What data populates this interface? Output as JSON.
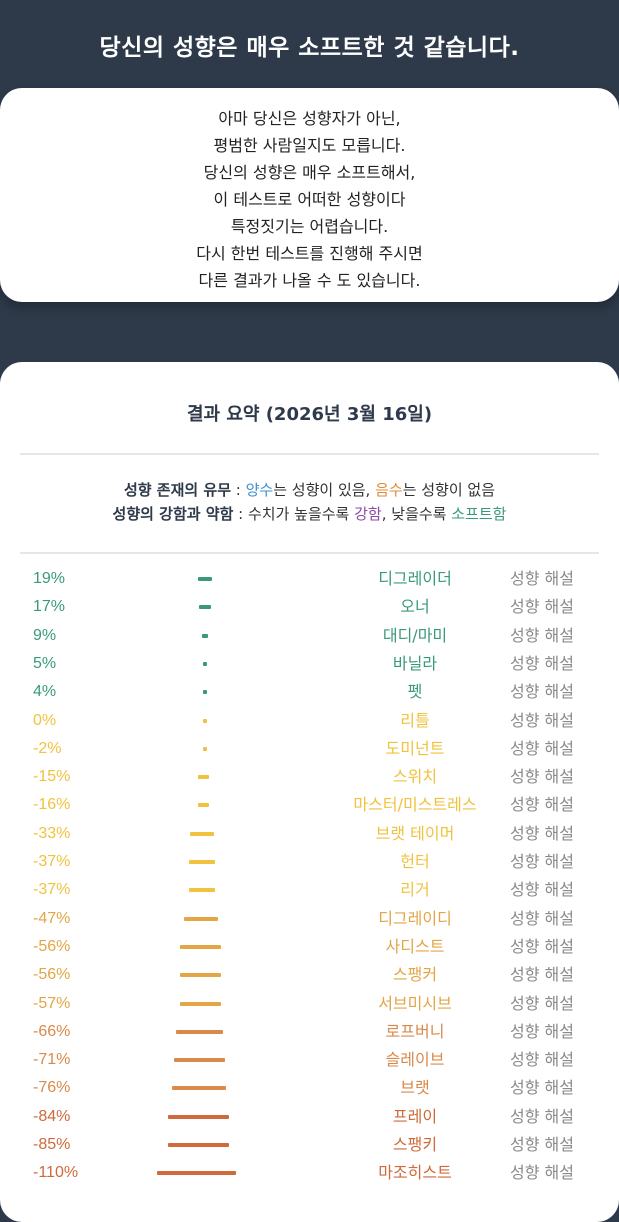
{
  "header": {
    "title": "당신의 성향은 매우 소프트한 것 같습니다."
  },
  "description": {
    "lines": [
      "아마 당신은 성향자가 아닌,",
      "평범한 사람일지도 모릅니다.",
      "당신의 성향은 매우 소프트해서,",
      "이 테스트로 어떠한 성향이다",
      "특정짓기는 어렵습니다.",
      "다시 한번 테스트를 진행해 주시면",
      "다른 결과가 나올 수 도 있습니다."
    ]
  },
  "summary": {
    "title": "결과 요약 (2026년 3월 16일)",
    "legend1": {
      "label": "성향 존재의 유무",
      "sep": " : ",
      "positive": "양수",
      "text1": "는 성향이 있음, ",
      "negative": "음수",
      "text2": "는 성향이 없음"
    },
    "legend2": {
      "label": "성향의 강함과 약함",
      "sep": " : 수치가 높을수록 ",
      "strong": "강함",
      "text1": ", 낮을수록 ",
      "soft": "소프트함"
    }
  },
  "colors": {
    "teal": "#3a9a78",
    "yellow": "#f0c23e",
    "amber": "#e3a545",
    "orange": "#d9894a",
    "red": "#cf6a3a"
  },
  "results": [
    {
      "pct": "19%",
      "value": 19,
      "name": "디그레이더",
      "link": "성향 해설"
    },
    {
      "pct": "17%",
      "value": 17,
      "name": "오너",
      "link": "성향 해설"
    },
    {
      "pct": "9%",
      "value": 9,
      "name": "대디/마미",
      "link": "성향 해설"
    },
    {
      "pct": "5%",
      "value": 5,
      "name": "바닐라",
      "link": "성향 해설"
    },
    {
      "pct": "4%",
      "value": 4,
      "name": "펫",
      "link": "성향 해설"
    },
    {
      "pct": "0%",
      "value": 0,
      "name": "리틀",
      "link": "성향 해설"
    },
    {
      "pct": "-2%",
      "value": -2,
      "name": "도미넌트",
      "link": "성향 해설"
    },
    {
      "pct": "-15%",
      "value": -15,
      "name": "스위치",
      "link": "성향 해설"
    },
    {
      "pct": "-16%",
      "value": -16,
      "name": "마스터/미스트레스",
      "link": "성향 해설"
    },
    {
      "pct": "-33%",
      "value": -33,
      "name": "브랫 테이머",
      "link": "성향 해설"
    },
    {
      "pct": "-37%",
      "value": -37,
      "name": "헌터",
      "link": "성향 해설"
    },
    {
      "pct": "-37%",
      "value": -37,
      "name": "리거",
      "link": "성향 해설"
    },
    {
      "pct": "-47%",
      "value": -47,
      "name": "디그레이디",
      "link": "성향 해설"
    },
    {
      "pct": "-56%",
      "value": -56,
      "name": "사디스트",
      "link": "성향 해설"
    },
    {
      "pct": "-56%",
      "value": -56,
      "name": "스팽커",
      "link": "성향 해설"
    },
    {
      "pct": "-57%",
      "value": -57,
      "name": "서브미시브",
      "link": "성향 해설"
    },
    {
      "pct": "-66%",
      "value": -66,
      "name": "로프버니",
      "link": "성향 해설"
    },
    {
      "pct": "-71%",
      "value": -71,
      "name": "슬레이브",
      "link": "성향 해설"
    },
    {
      "pct": "-76%",
      "value": -76,
      "name": "브랫",
      "link": "성향 해설"
    },
    {
      "pct": "-84%",
      "value": -84,
      "name": "프레이",
      "link": "성향 해설"
    },
    {
      "pct": "-85%",
      "value": -85,
      "name": "스팽키",
      "link": "성향 해설"
    },
    {
      "pct": "-110%",
      "value": -110,
      "name": "마조히스트",
      "link": "성향 해설"
    }
  ]
}
